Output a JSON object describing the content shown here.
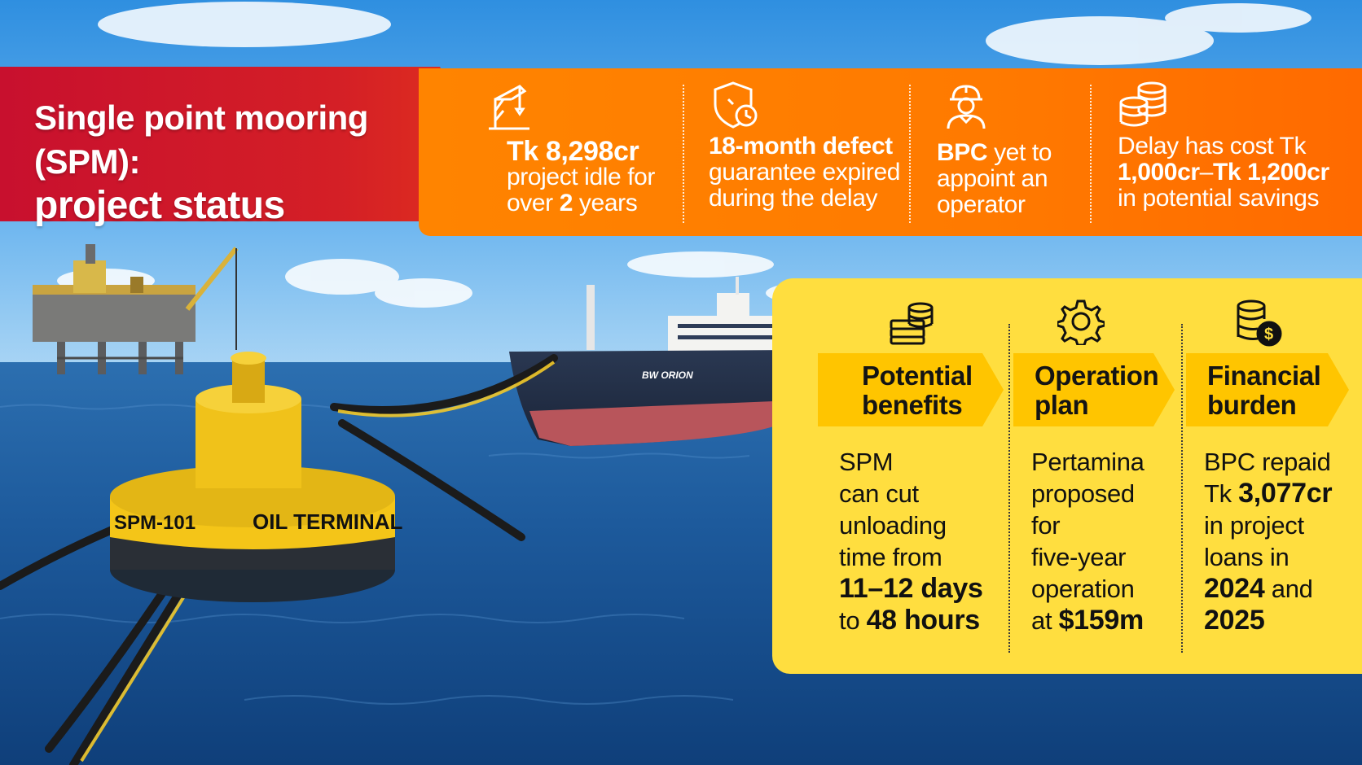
{
  "title": {
    "line1": "Single point mooring (SPM):",
    "line2": "project status"
  },
  "scene": {
    "buoy_text_left": "SPM-101",
    "buoy_text_right": "OIL TERMINAL",
    "ship_name": "BW ORION"
  },
  "stats": [
    {
      "icon": "crane-icon",
      "lines": [
        [
          "Tk 8,298cr"
        ],
        [
          "project idle for"
        ],
        [
          "over ",
          "2",
          " years"
        ]
      ]
    },
    {
      "icon": "shield-clock-icon",
      "lines": [
        [
          "18-month defect"
        ],
        [
          "guarantee expired"
        ],
        [
          "during the delay"
        ]
      ]
    },
    {
      "icon": "worker-icon",
      "lines": [
        [
          "BPC",
          " yet to"
        ],
        [
          "appoint an"
        ],
        [
          "operator"
        ]
      ]
    },
    {
      "icon": "coins-icon",
      "lines": [
        [
          "Delay has cost Tk"
        ],
        [
          "1,000cr",
          "–",
          "Tk 1,200cr"
        ],
        [
          "in potential savings"
        ]
      ]
    }
  ],
  "panel": {
    "columns": [
      {
        "icon": "money-stack-icon",
        "heading1": "Potential",
        "heading2": "benefits",
        "lines": [
          [
            "SPM"
          ],
          [
            "can cut"
          ],
          [
            "unloading"
          ],
          [
            "time from"
          ],
          [
            "11–12 days"
          ],
          [
            "to ",
            "48 hours"
          ]
        ]
      },
      {
        "icon": "gear-icon",
        "heading1": "Operation",
        "heading2": "plan",
        "lines": [
          [
            "Pertamina"
          ],
          [
            "proposed"
          ],
          [
            "for"
          ],
          [
            "five-year"
          ],
          [
            "operation"
          ],
          [
            "at ",
            "$159m"
          ]
        ]
      },
      {
        "icon": "dollar-coins-icon",
        "heading1": "Financial",
        "heading2": "burden",
        "lines": [
          [
            "BPC repaid"
          ],
          [
            "Tk ",
            "3,077cr"
          ],
          [
            "in project"
          ],
          [
            "loans in"
          ],
          [
            "2024",
            " and"
          ],
          [
            "2025"
          ]
        ]
      }
    ]
  },
  "colors": {
    "title_red": "#d41f26",
    "stat_orange": "#ff7a00",
    "panel_yellow": "#ffde3f",
    "tag_yellow": "#ffc500"
  }
}
